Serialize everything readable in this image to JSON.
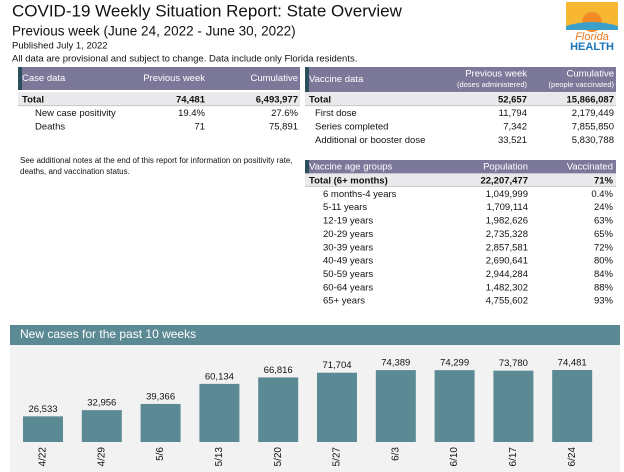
{
  "header": {
    "title": "COVID-19 Weekly Situation Report: State Overview",
    "subtitle": "Previous week (June 24, 2022 - June 30, 2022)",
    "published": "Published July 1, 2022",
    "disclaimer": "All data are provisional and subject to change. Data include only Florida residents."
  },
  "logo": {
    "line1": "Florida",
    "line2": "HEALTH"
  },
  "case_table": {
    "columns": [
      {
        "label": "Case data"
      },
      {
        "label": "Previous week"
      },
      {
        "label": "Cumulative"
      }
    ],
    "rows": [
      [
        "Total",
        "74,481",
        "6,493,977"
      ],
      [
        "New case positivity",
        "19.4%",
        "27.6%"
      ],
      [
        "Deaths",
        "71",
        "75,891"
      ]
    ]
  },
  "vaccine_table": {
    "columns": [
      {
        "label": "Vaccine data"
      },
      {
        "label": "Previous week",
        "note": "(doses administered)"
      },
      {
        "label": "Cumulative",
        "note": "(people vaccinated)"
      }
    ],
    "rows": [
      [
        "Total",
        "52,657",
        "15,866,087"
      ],
      [
        "First dose",
        "11,794",
        "2,179,449"
      ],
      [
        "Series completed",
        "7,342",
        "7,855,850"
      ],
      [
        "Additional or booster dose",
        "33,521",
        "5,830,788"
      ]
    ]
  },
  "note": "See additional notes at the end of this report for information on positivity rate, deaths, and vaccination status.",
  "age_table": {
    "columns": [
      {
        "label": "Vaccine age groups"
      },
      {
        "label": "Population"
      },
      {
        "label": "Vaccinated"
      }
    ],
    "rows": [
      [
        "Total (6+ months)",
        "22,207,477",
        "71%"
      ],
      [
        "6 months-4 years",
        "1,049,999",
        "0.4%"
      ],
      [
        "5-11 years",
        "1,709,114",
        "24%"
      ],
      [
        "12-19 years",
        "1,982,626",
        "63%"
      ],
      [
        "20-29 years",
        "2,735,328",
        "65%"
      ],
      [
        "30-39 years",
        "2,857,581",
        "72%"
      ],
      [
        "40-49 years",
        "2,690,641",
        "80%"
      ],
      [
        "50-59 years",
        "2,944,284",
        "84%"
      ],
      [
        "60-64 years",
        "1,482,302",
        "88%"
      ],
      [
        "65+ years",
        "4,755,602",
        "93%"
      ]
    ]
  },
  "chart_data": {
    "type": "bar",
    "title": "New cases for the past 10 weeks",
    "categories": [
      "4/22",
      "4/29",
      "5/6",
      "5/13",
      "5/20",
      "5/27",
      "6/3",
      "6/10",
      "6/17",
      "6/24"
    ],
    "values": [
      26533,
      32956,
      39366,
      60134,
      66816,
      71704,
      74389,
      74299,
      73780,
      74481
    ],
    "value_labels": [
      "26,533",
      "32,956",
      "39,366",
      "60,134",
      "66,816",
      "71,704",
      "74,389",
      "74,299",
      "73,780",
      "74,481"
    ],
    "color": "#5b8a94"
  }
}
